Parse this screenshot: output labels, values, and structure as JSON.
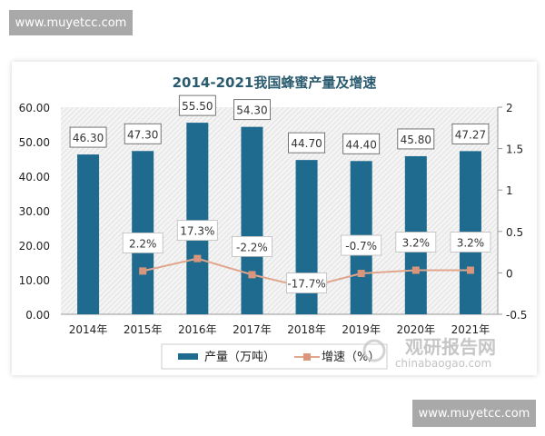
{
  "watermarks": {
    "top": "www.muyetcc.com",
    "bottom": "www.muyetcc.com"
  },
  "logo": {
    "cn": "观研报告网",
    "en": "chinabaogao.com"
  },
  "chart_data": {
    "type": "bar+line",
    "title": "2014-2021我国蜂蜜产量及增速",
    "categories": [
      "2014年",
      "2015年",
      "2016年",
      "2017年",
      "2018年",
      "2019年",
      "2020年",
      "2021年"
    ],
    "series": [
      {
        "name": "产量（万吨）",
        "type": "bar",
        "axis": "left",
        "color": "#1f6a8f",
        "values": [
          46.3,
          47.3,
          55.5,
          54.3,
          44.7,
          44.4,
          45.8,
          47.27
        ],
        "labels": [
          "46.30",
          "47.30",
          "55.50",
          "54.30",
          "44.70",
          "44.40",
          "45.80",
          "47.27"
        ]
      },
      {
        "name": "增速（%）",
        "type": "line",
        "axis": "right",
        "color": "#e0a68e",
        "values": [
          null,
          0.022,
          0.173,
          -0.022,
          -0.177,
          -0.007,
          0.032,
          0.032
        ],
        "labels": [
          "",
          "2.2%",
          "17.3%",
          "-2.2%",
          "-17.7%",
          "-0.7%",
          "3.2%",
          "3.2%"
        ]
      }
    ],
    "left_axis": {
      "ylim": [
        0,
        60
      ],
      "ticks": [
        "0.00",
        "10.00",
        "20.00",
        "30.00",
        "40.00",
        "50.00",
        "60.00"
      ]
    },
    "right_axis": {
      "ylim": [
        -0.5,
        2
      ],
      "ticks": [
        "-0.5",
        "0",
        "0.5",
        "1",
        "1.5",
        "2"
      ]
    },
    "legend": "bottom",
    "grid": false
  }
}
